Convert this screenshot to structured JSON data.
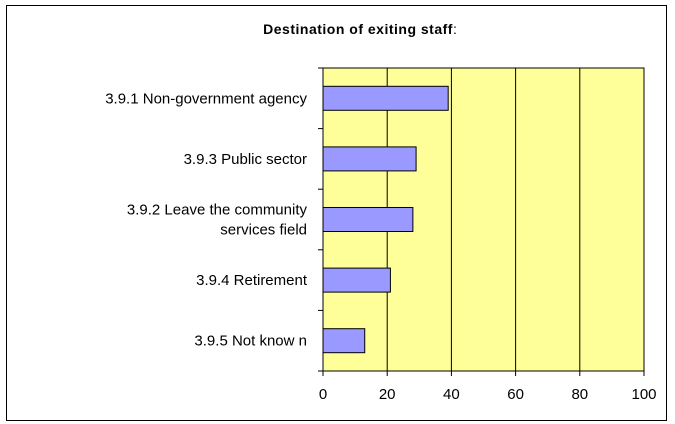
{
  "chart_data": {
    "type": "bar",
    "orientation": "horizontal",
    "title": "Destination of exiting staff",
    "title_suffix": ":",
    "categories": [
      "3.9.1  Non-government agency",
      "3.9.3 Public sector",
      "3.9.2 Leave the community services field",
      "3.9.4 Retirement",
      "3.9.5 Not know n"
    ],
    "category_lines": [
      [
        "3.9.1  Non-government agency"
      ],
      [
        "3.9.3 Public sector"
      ],
      [
        "3.9.2 Leave the community",
        "services field"
      ],
      [
        "3.9.4 Retirement"
      ],
      [
        "3.9.5 Not know n"
      ]
    ],
    "values": [
      39,
      29,
      28,
      21,
      13
    ],
    "xlim": [
      0,
      100
    ],
    "xticks": [
      0,
      20,
      40,
      60,
      80,
      100
    ],
    "xlabel": "",
    "ylabel": "",
    "grid": "vertical",
    "legend": "none",
    "colors": {
      "plot_background": "#FFFF99",
      "bar_fill": "#9999FF",
      "bar_stroke": "#000000",
      "gridline": "#000000"
    }
  }
}
